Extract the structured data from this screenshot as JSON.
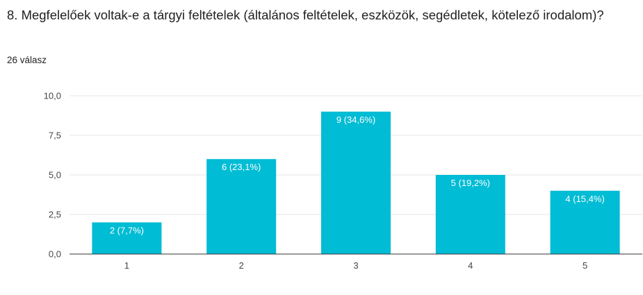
{
  "question": "8. Megfelelőek voltak-e a tárgyi feltételek (általános feltételek, eszközök, segédletek, kötelező irodalom)?",
  "responses": "26 válasz",
  "colors": {
    "bar": "#00bcd4",
    "grid": "#e6e6e6",
    "axis": "#333333",
    "text": "#202124"
  },
  "chart_data": {
    "type": "bar",
    "categories": [
      "1",
      "2",
      "3",
      "4",
      "5"
    ],
    "values": [
      2,
      6,
      9,
      5,
      4
    ],
    "data_labels": [
      "2 (7,7%)",
      "6 (23,1%)",
      "9 (34,6%)",
      "5 (19,2%)",
      "4 (15,4%)"
    ],
    "yticks": [
      "0,0",
      "2,5",
      "5,0",
      "7,5",
      "10,0"
    ],
    "ytick_values": [
      0,
      2.5,
      5,
      7.5,
      10
    ],
    "ylim": [
      0,
      10
    ],
    "grid": true
  }
}
